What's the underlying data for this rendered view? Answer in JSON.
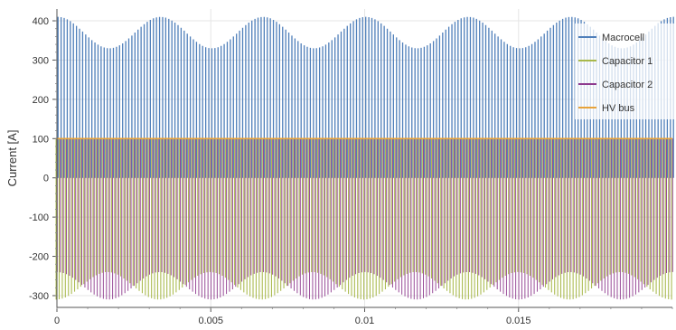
{
  "chart_data": {
    "type": "line",
    "title": "",
    "xlabel": "",
    "ylabel": "Current [A]",
    "xlim": [
      0,
      0.02
    ],
    "ylim": [
      -330,
      430
    ],
    "x_ticks": [
      0,
      0.005,
      0.01,
      0.015
    ],
    "x_tick_labels": [
      "0",
      "0.005",
      "0.01",
      "0.015"
    ],
    "y_ticks": [
      -300,
      -200,
      -100,
      0,
      100,
      200,
      300,
      400
    ],
    "y_tick_labels": [
      "-300",
      "-200",
      "-100",
      "0",
      "100",
      "200",
      "300",
      "400"
    ],
    "grid": true,
    "legend_position": "top-right",
    "switching_period_s": 0.0001,
    "series": [
      {
        "name": "Macrocell",
        "color": "#4f7fba",
        "description_points": {
          "envelope_x": [
            0,
            0.00167,
            0.00333,
            0.005,
            0.00667,
            0.00833,
            0.01,
            0.01167,
            0.01333,
            0.015,
            0.01667,
            0.01833,
            0.02
          ],
          "envelope_max": [
            410,
            330,
            410,
            330,
            410,
            330,
            410,
            330,
            410,
            330,
            410,
            330,
            410
          ],
          "base_level": 0
        }
      },
      {
        "name": "Capacitor 1",
        "color": "#a8b84a",
        "description_points": {
          "envelope_x": [
            0,
            0.00167,
            0.00333,
            0.005,
            0.00667,
            0.00833,
            0.01,
            0.01167,
            0.01333,
            0.015,
            0.01667,
            0.01833,
            0.02
          ],
          "envelope_min": [
            -310,
            -240,
            -310,
            -240,
            -310,
            -240,
            -310,
            -240,
            -310,
            -240,
            -310,
            -240,
            -310
          ],
          "high_level": 100
        }
      },
      {
        "name": "Capacitor 2",
        "color": "#8e3a8e",
        "description_points": {
          "envelope_x": [
            0,
            0.00167,
            0.00333,
            0.005,
            0.00667,
            0.00833,
            0.01,
            0.01167,
            0.01333,
            0.015,
            0.01667,
            0.01833,
            0.02
          ],
          "envelope_min": [
            -240,
            -310,
            -240,
            -310,
            -240,
            -310,
            -240,
            -310,
            -240,
            -310,
            -240,
            -310,
            -240
          ],
          "high_level": 100
        }
      },
      {
        "name": "HV bus",
        "color": "#e8a33a",
        "description_points": {
          "envelope_x": [
            0,
            0.02
          ],
          "level": [
            100,
            100
          ]
        }
      }
    ]
  }
}
